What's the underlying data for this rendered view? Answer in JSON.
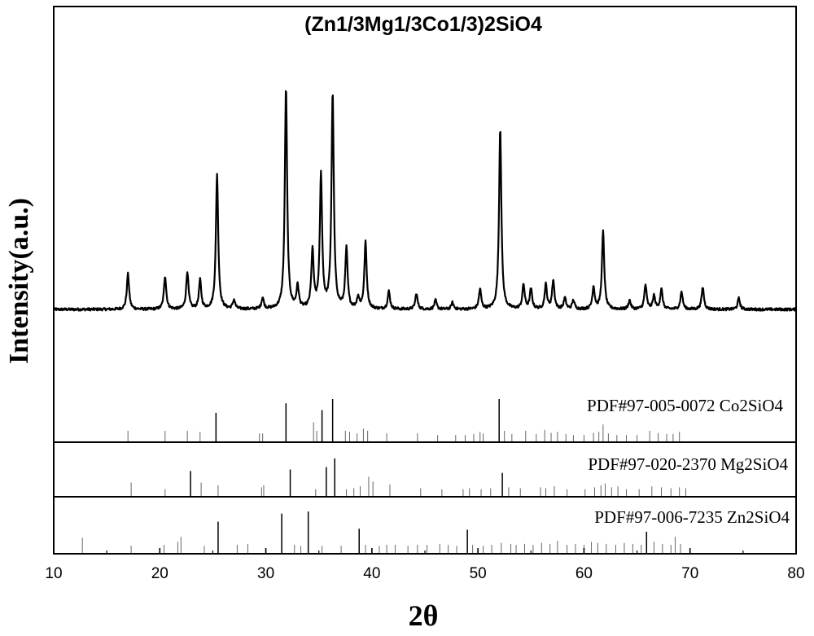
{
  "chart_data": {
    "type": "line",
    "title": "(Zn1/3Mg1/3Co1/3)2SiO4",
    "xlabel": "2θ",
    "ylabel": "Intensity(a.u.)",
    "xlim": [
      10,
      80
    ],
    "xticks": [
      10,
      20,
      30,
      40,
      50,
      60,
      70,
      80
    ],
    "y_ticks_shown": false,
    "grid": false,
    "legend": "none",
    "pattern": {
      "baseline": 0.06,
      "noise": 0.012,
      "peaks": [
        [
          17.0,
          0.16
        ],
        [
          20.5,
          0.15
        ],
        [
          22.6,
          0.17
        ],
        [
          23.8,
          0.13
        ],
        [
          25.4,
          0.61
        ],
        [
          27.0,
          0.04
        ],
        [
          29.7,
          0.05
        ],
        [
          31.9,
          1.0
        ],
        [
          33.0,
          0.1
        ],
        [
          34.4,
          0.26
        ],
        [
          35.2,
          0.6
        ],
        [
          36.3,
          0.97
        ],
        [
          37.6,
          0.27
        ],
        [
          38.7,
          0.05
        ],
        [
          39.4,
          0.3
        ],
        [
          41.6,
          0.08
        ],
        [
          44.2,
          0.07
        ],
        [
          46.0,
          0.04
        ],
        [
          47.6,
          0.03
        ],
        [
          50.2,
          0.09
        ],
        [
          52.1,
          0.82
        ],
        [
          54.3,
          0.11
        ],
        [
          55.0,
          0.09
        ],
        [
          56.4,
          0.11
        ],
        [
          57.1,
          0.13
        ],
        [
          58.2,
          0.05
        ],
        [
          59.0,
          0.04
        ],
        [
          60.9,
          0.1
        ],
        [
          61.8,
          0.35
        ],
        [
          64.3,
          0.04
        ],
        [
          65.8,
          0.11
        ],
        [
          66.6,
          0.06
        ],
        [
          67.3,
          0.09
        ],
        [
          69.2,
          0.08
        ],
        [
          71.2,
          0.1
        ],
        [
          74.6,
          0.05
        ]
      ]
    },
    "references": [
      {
        "name": "PDF#97-005-0072 Co2SiO4",
        "lines": [
          [
            17.0,
            0.2
          ],
          [
            20.5,
            0.2
          ],
          [
            22.6,
            0.2
          ],
          [
            23.8,
            0.18
          ],
          [
            25.3,
            0.54
          ],
          [
            29.4,
            0.15
          ],
          [
            29.7,
            0.15
          ],
          [
            31.9,
            0.72
          ],
          [
            34.5,
            0.36
          ],
          [
            34.8,
            0.2
          ],
          [
            35.3,
            0.59
          ],
          [
            36.3,
            0.8
          ],
          [
            37.5,
            0.2
          ],
          [
            37.9,
            0.18
          ],
          [
            38.6,
            0.15
          ],
          [
            39.2,
            0.24
          ],
          [
            39.6,
            0.2
          ],
          [
            41.4,
            0.15
          ],
          [
            44.3,
            0.15
          ],
          [
            46.2,
            0.12
          ],
          [
            47.9,
            0.12
          ],
          [
            48.8,
            0.12
          ],
          [
            49.6,
            0.14
          ],
          [
            50.2,
            0.18
          ],
          [
            50.5,
            0.15
          ],
          [
            52.0,
            0.8
          ],
          [
            52.5,
            0.2
          ],
          [
            53.2,
            0.14
          ],
          [
            54.5,
            0.2
          ],
          [
            55.5,
            0.14
          ],
          [
            56.3,
            0.22
          ],
          [
            56.9,
            0.16
          ],
          [
            57.5,
            0.18
          ],
          [
            58.3,
            0.14
          ],
          [
            59.0,
            0.12
          ],
          [
            60.0,
            0.12
          ],
          [
            60.9,
            0.16
          ],
          [
            61.4,
            0.18
          ],
          [
            61.8,
            0.32
          ],
          [
            62.3,
            0.15
          ],
          [
            63.1,
            0.12
          ],
          [
            64.0,
            0.12
          ],
          [
            65.0,
            0.12
          ],
          [
            66.2,
            0.2
          ],
          [
            67.0,
            0.16
          ],
          [
            67.8,
            0.14
          ],
          [
            68.4,
            0.14
          ],
          [
            69.0,
            0.18
          ]
        ]
      },
      {
        "name": "PDF#97-020-2370 Mg2SiO4",
        "lines": [
          [
            17.3,
            0.28
          ],
          [
            20.5,
            0.14
          ],
          [
            22.9,
            0.52
          ],
          [
            23.9,
            0.28
          ],
          [
            25.5,
            0.22
          ],
          [
            29.6,
            0.18
          ],
          [
            29.8,
            0.22
          ],
          [
            32.3,
            0.55
          ],
          [
            34.7,
            0.14
          ],
          [
            35.7,
            0.6
          ],
          [
            36.5,
            0.78
          ],
          [
            37.6,
            0.14
          ],
          [
            38.3,
            0.16
          ],
          [
            38.9,
            0.2
          ],
          [
            39.7,
            0.4
          ],
          [
            40.1,
            0.3
          ],
          [
            41.7,
            0.24
          ],
          [
            44.6,
            0.16
          ],
          [
            46.6,
            0.14
          ],
          [
            48.6,
            0.14
          ],
          [
            49.2,
            0.16
          ],
          [
            50.3,
            0.14
          ],
          [
            51.2,
            0.16
          ],
          [
            52.3,
            0.48
          ],
          [
            52.9,
            0.18
          ],
          [
            54.0,
            0.16
          ],
          [
            55.9,
            0.18
          ],
          [
            56.4,
            0.16
          ],
          [
            57.2,
            0.2
          ],
          [
            58.4,
            0.14
          ],
          [
            60.1,
            0.14
          ],
          [
            61.0,
            0.18
          ],
          [
            61.6,
            0.22
          ],
          [
            62.0,
            0.26
          ],
          [
            62.6,
            0.18
          ],
          [
            63.2,
            0.2
          ],
          [
            64.0,
            0.14
          ],
          [
            65.2,
            0.14
          ],
          [
            66.4,
            0.2
          ],
          [
            67.3,
            0.18
          ],
          [
            68.2,
            0.16
          ],
          [
            69.0,
            0.18
          ],
          [
            69.6,
            0.16
          ]
        ]
      },
      {
        "name": "PDF#97-006-7235  Zn2SiO4",
        "lines": [
          [
            12.7,
            0.3
          ],
          [
            17.3,
            0.14
          ],
          [
            20.4,
            0.16
          ],
          [
            21.7,
            0.22
          ],
          [
            22.0,
            0.32
          ],
          [
            24.2,
            0.14
          ],
          [
            25.5,
            0.62
          ],
          [
            27.3,
            0.16
          ],
          [
            28.3,
            0.18
          ],
          [
            31.5,
            0.78
          ],
          [
            32.7,
            0.16
          ],
          [
            33.3,
            0.14
          ],
          [
            34.0,
            0.82
          ],
          [
            35.3,
            0.14
          ],
          [
            37.1,
            0.14
          ],
          [
            38.8,
            0.48
          ],
          [
            39.4,
            0.16
          ],
          [
            40.7,
            0.14
          ],
          [
            41.4,
            0.16
          ],
          [
            42.2,
            0.16
          ],
          [
            43.4,
            0.14
          ],
          [
            44.3,
            0.16
          ],
          [
            45.2,
            0.16
          ],
          [
            46.4,
            0.18
          ],
          [
            47.2,
            0.16
          ],
          [
            48.0,
            0.14
          ],
          [
            49.0,
            0.46
          ],
          [
            49.5,
            0.16
          ],
          [
            50.5,
            0.14
          ],
          [
            51.3,
            0.16
          ],
          [
            52.2,
            0.2
          ],
          [
            53.1,
            0.18
          ],
          [
            53.6,
            0.16
          ],
          [
            54.4,
            0.18
          ],
          [
            55.2,
            0.16
          ],
          [
            56.0,
            0.2
          ],
          [
            56.8,
            0.18
          ],
          [
            57.5,
            0.24
          ],
          [
            58.4,
            0.16
          ],
          [
            59.2,
            0.18
          ],
          [
            60.0,
            0.16
          ],
          [
            60.7,
            0.22
          ],
          [
            61.3,
            0.2
          ],
          [
            62.1,
            0.18
          ],
          [
            63.0,
            0.16
          ],
          [
            63.8,
            0.2
          ],
          [
            64.6,
            0.18
          ],
          [
            65.4,
            0.16
          ],
          [
            65.9,
            0.42
          ],
          [
            66.6,
            0.22
          ],
          [
            67.4,
            0.18
          ],
          [
            68.2,
            0.16
          ],
          [
            68.6,
            0.32
          ],
          [
            69.1,
            0.18
          ]
        ]
      }
    ]
  }
}
